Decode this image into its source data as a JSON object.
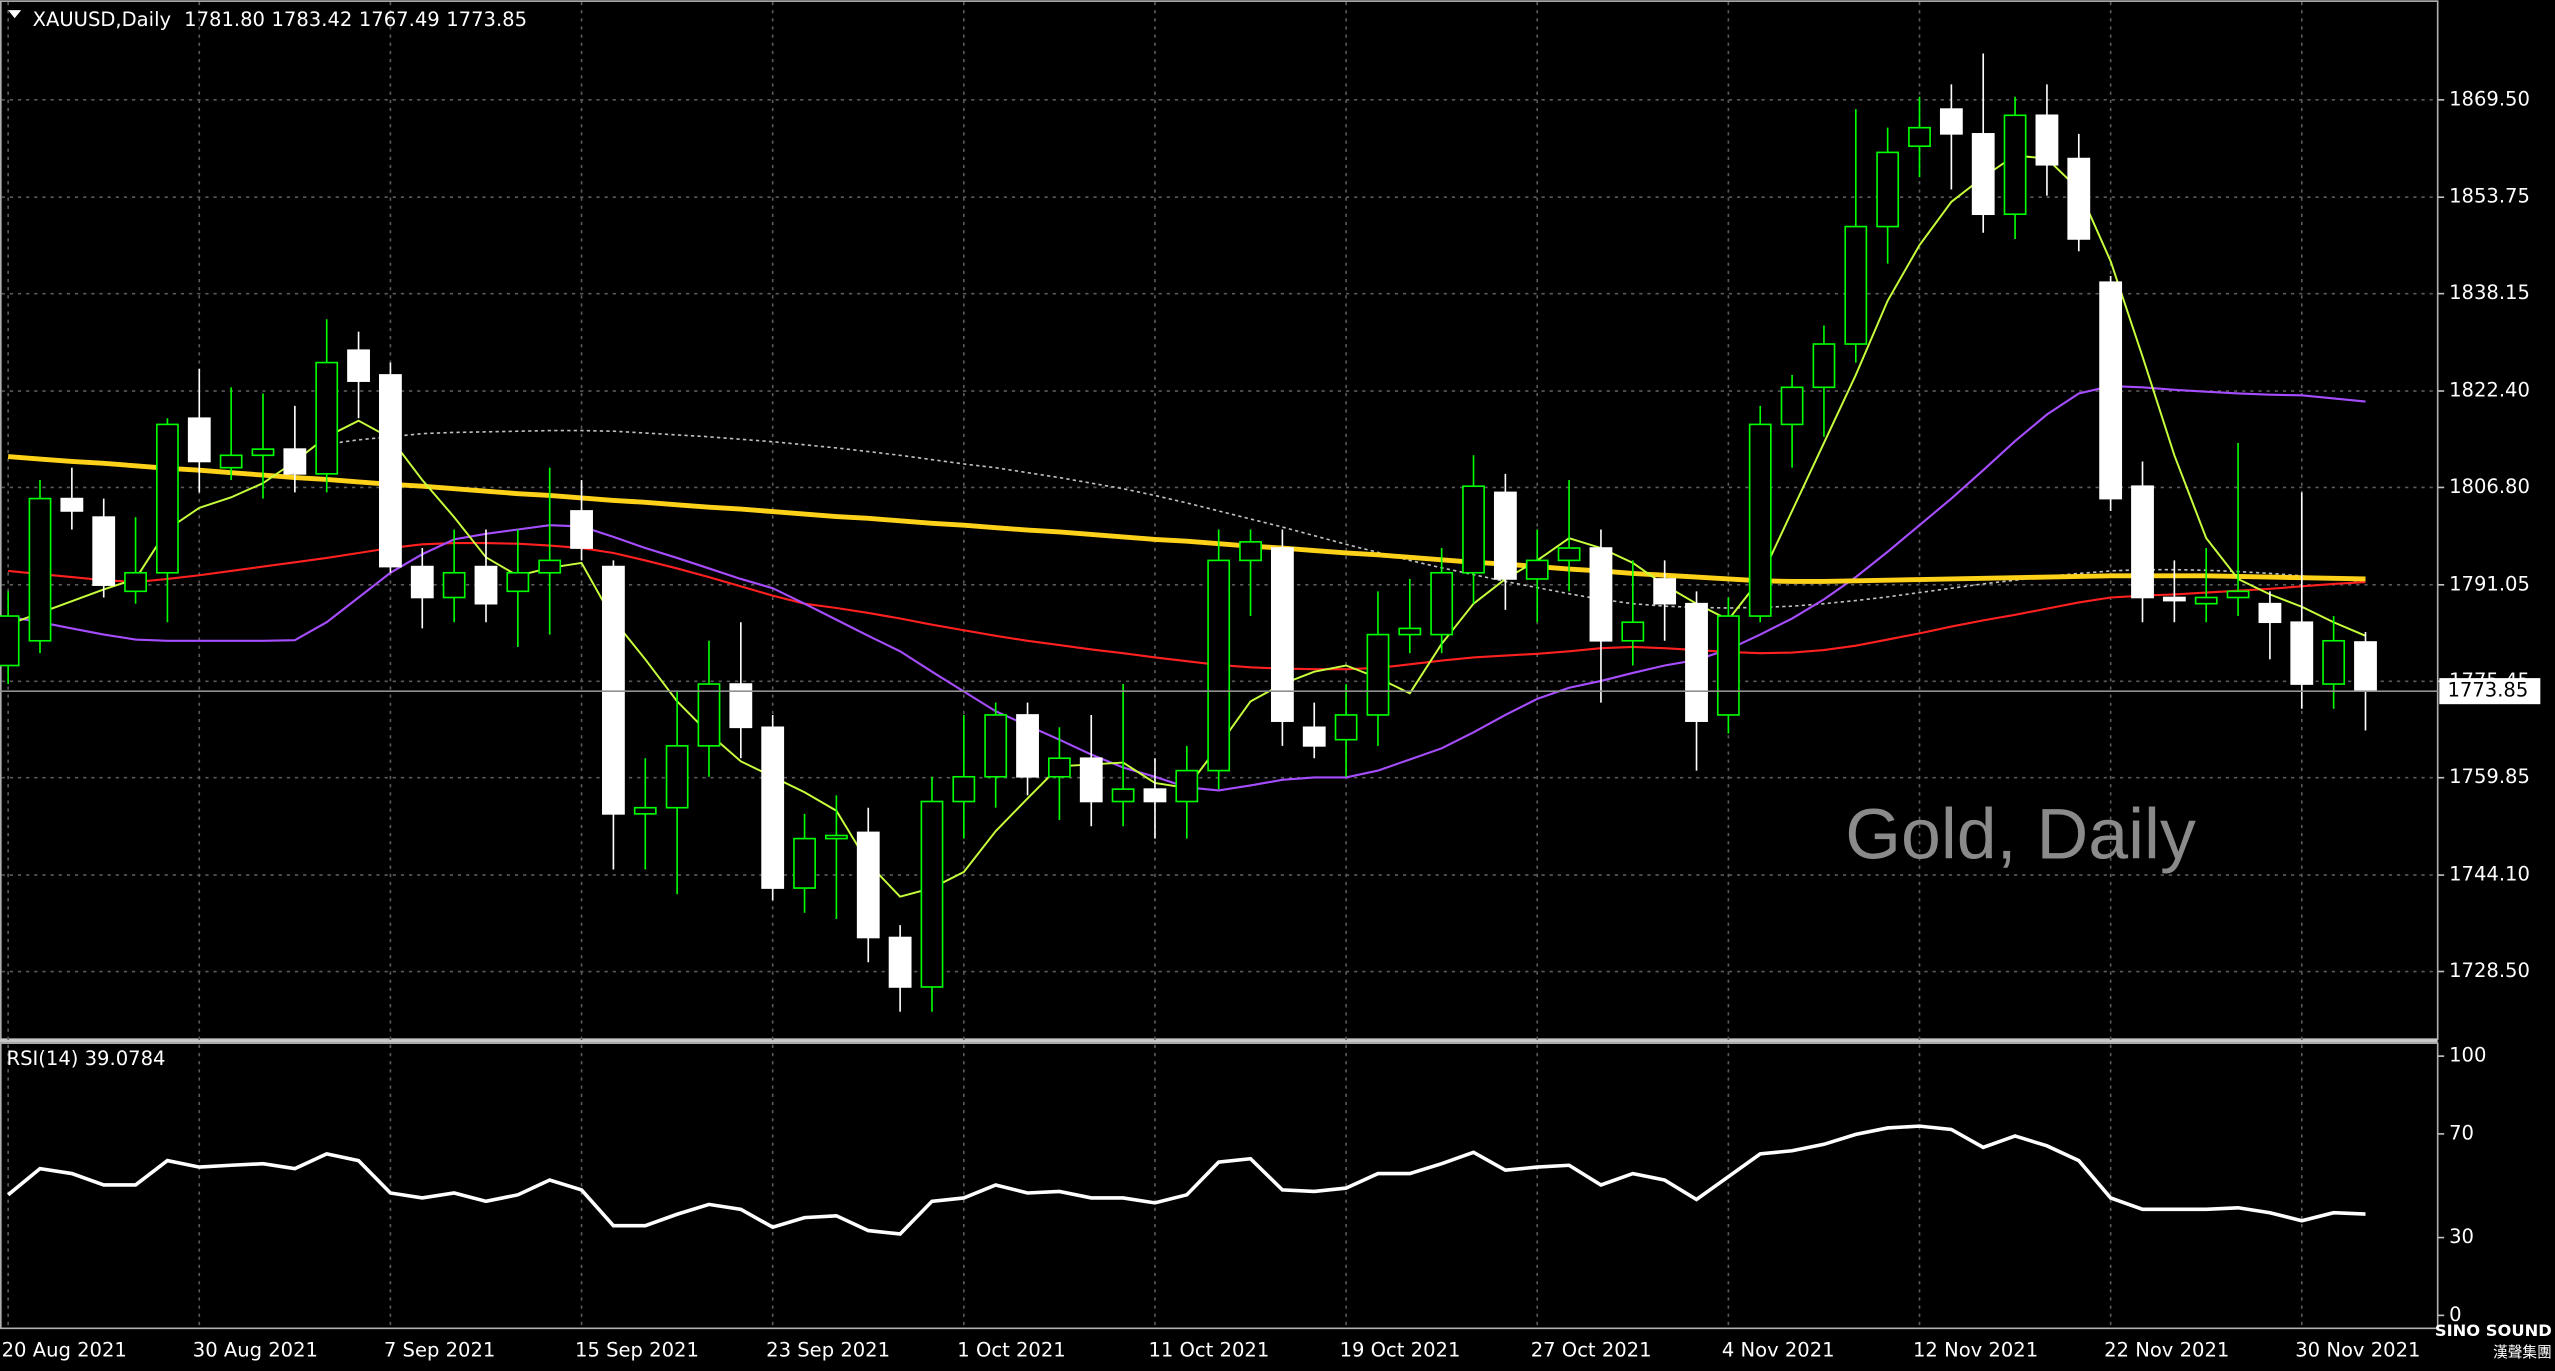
{
  "header": {
    "symbol": "XAUUSD,Daily",
    "ohlc_text": [
      "1781.80",
      "1783.42",
      "1767.49",
      "1773.85"
    ]
  },
  "logo": {
    "line1": "SINO SOUND",
    "line2": "漢聲集團"
  },
  "chart_data": [
    {
      "type": "candlestick",
      "watermark": "Gold, Daily",
      "categories": [
        "20 Aug 2021",
        null,
        null,
        null,
        null,
        null,
        "30 Aug 2021",
        null,
        null,
        null,
        null,
        null,
        "7 Sep 2021",
        null,
        null,
        null,
        null,
        null,
        "15 Sep 2021",
        null,
        null,
        null,
        null,
        null,
        "23 Sep 2021",
        null,
        null,
        null,
        null,
        null,
        "1 Oct 2021",
        null,
        null,
        null,
        null,
        null,
        "11 Oct 2021",
        null,
        null,
        null,
        null,
        null,
        "19 Oct 2021",
        null,
        null,
        null,
        null,
        null,
        "27 Oct 2021",
        null,
        null,
        null,
        null,
        null,
        "4 Nov 2021",
        null,
        null,
        null,
        null,
        null,
        "12 Nov 2021",
        null,
        null,
        null,
        null,
        null,
        "22 Nov 2021",
        null,
        null,
        null,
        null,
        null,
        "30 Nov 2021",
        null,
        null
      ],
      "open": [
        1778,
        1782,
        1805,
        1802,
        1790,
        1793,
        1818,
        1810,
        1812,
        1813,
        1809,
        1829,
        1825,
        1794,
        1789,
        1794,
        1790,
        1793,
        1803,
        1794,
        1754,
        1755,
        1765,
        1775,
        1768,
        1742,
        1750,
        1751,
        1734,
        1726,
        1756,
        1760,
        1770,
        1760,
        1763,
        1756,
        1758,
        1756,
        1761,
        1795,
        1797,
        1768,
        1766,
        1770,
        1783,
        1783,
        1793,
        1806,
        1792,
        1795,
        1797,
        1782,
        1792,
        1788,
        1770,
        1786,
        1817,
        1823,
        1830,
        1849,
        1862,
        1868,
        1864,
        1851,
        1867,
        1860,
        1840,
        1807,
        1789,
        1788,
        1789,
        1788,
        1785,
        1775,
        1781.8
      ],
      "high": [
        1790,
        1808,
        1810,
        1805,
        1802,
        1818,
        1826,
        1823,
        1822,
        1820,
        1834,
        1832,
        1827,
        1797,
        1800,
        1800,
        1800,
        1810,
        1808,
        1795,
        1763,
        1774,
        1782,
        1785,
        1770,
        1754,
        1757,
        1755,
        1736,
        1760,
        1770,
        1772,
        1772,
        1768,
        1770,
        1775,
        1763,
        1765,
        1800,
        1800,
        1800,
        1772,
        1775,
        1790,
        1792,
        1797,
        1812,
        1809,
        1800,
        1808,
        1800,
        1795,
        1795,
        1790,
        1789,
        1820,
        1825,
        1833,
        1868,
        1865,
        1870,
        1872,
        1877,
        1870,
        1872,
        1864,
        1841,
        1811,
        1795,
        1797,
        1814,
        1790,
        1806,
        1786,
        1783.42
      ],
      "low": [
        1775,
        1780,
        1800,
        1789,
        1788,
        1785,
        1806,
        1808,
        1805,
        1806,
        1806,
        1818,
        1793,
        1784,
        1785,
        1785,
        1781,
        1783,
        1795,
        1745,
        1745,
        1741,
        1760,
        1763,
        1740,
        1738,
        1737,
        1730,
        1722,
        1722,
        1750,
        1755,
        1757,
        1753,
        1752,
        1752,
        1750,
        1750,
        1758,
        1786,
        1765,
        1763,
        1760,
        1765,
        1780,
        1780,
        1788,
        1787,
        1785,
        1790,
        1772,
        1778,
        1782,
        1761,
        1767,
        1785,
        1810,
        1815,
        1827,
        1843,
        1857,
        1855,
        1848,
        1847,
        1854,
        1845,
        1803,
        1785,
        1785,
        1785,
        1786,
        1779,
        1771,
        1771,
        1767.49
      ],
      "close": [
        1786,
        1805,
        1803,
        1791,
        1793,
        1817,
        1811,
        1812,
        1813,
        1809,
        1827,
        1824,
        1794,
        1789,
        1793,
        1788,
        1793,
        1795,
        1797,
        1754,
        1755,
        1765,
        1775,
        1768,
        1742,
        1750,
        1750.5,
        1734,
        1726,
        1756,
        1760,
        1770,
        1760,
        1763,
        1756,
        1758,
        1756,
        1761,
        1795,
        1798,
        1769,
        1765,
        1770,
        1783,
        1784,
        1793,
        1807,
        1792,
        1795,
        1797,
        1782,
        1785,
        1788,
        1769,
        1786,
        1817,
        1823,
        1830,
        1849,
        1861,
        1865,
        1864,
        1851,
        1867,
        1859,
        1847,
        1805,
        1789,
        1788.5,
        1789,
        1790,
        1785,
        1775,
        1782,
        1773.85
      ],
      "up_color": "#00ff00",
      "down_color": "#ffffff",
      "ylim": [
        1717.7,
        1885.6
      ],
      "yticks": [
        {
          "value": 1728.5,
          "label": "1728.50"
        },
        {
          "value": 1744.1,
          "label": "1744.10"
        },
        1759.85,
        1775.45,
        1791.05,
        {
          "value": 1806.8,
          "label": "1806.80"
        },
        {
          "value": 1822.4,
          "label": "1822.40"
        },
        1838.15,
        1853.75,
        {
          "value": 1869.5,
          "label": "1869.50"
        }
      ],
      "grid": true,
      "lines": [
        {
          "color": "#c0c0c0",
          "width": 1,
          "dash": true,
          "values": [
            null,
            null,
            null,
            null,
            null,
            null,
            null,
            null,
            null,
            null,
            1813.8,
            1814.5,
            1815.0,
            1815.5,
            1815.7,
            1815.8,
            1815.9,
            1816.0,
            1816.0,
            1815.9,
            1815.6,
            1815.3,
            1815.0,
            1814.6,
            1814.2,
            1813.7,
            1813.2,
            1812.6,
            1812.0,
            1811.3,
            1810.6,
            1810.0,
            1809.2,
            1808.4,
            1807.5,
            1806.6,
            1805.5,
            1804.3,
            1803.0,
            1801.7,
            1800.4,
            1799.0,
            1797.6,
            1796.3,
            1795.0,
            1793.8,
            1792.7,
            1791.6,
            1790.6,
            1789.6,
            1788.7,
            1788.0,
            1787.6,
            1787.4,
            1787.3,
            1787.4,
            1787.6,
            1788.0,
            1788.5,
            1789.1,
            1789.8,
            1790.5,
            1791.2,
            1791.8,
            1792.4,
            1792.9,
            1793.3,
            1793.5,
            1793.5,
            1793.4,
            1793.2,
            1792.9,
            1792.5,
            1792.0,
            1791.6
          ]
        },
        {
          "color": "#ff2020",
          "width": 1.3,
          "dash": false,
          "values": [
            1793.3,
            1792.8,
            1792.3,
            1791.8,
            1791.5,
            1792.0,
            1792.6,
            1793.3,
            1794.0,
            1794.7,
            1795.4,
            1796.2,
            1797.0,
            1797.6,
            1797.8,
            1797.8,
            1797.7,
            1797.4,
            1797.0,
            1796.2,
            1795.0,
            1793.7,
            1792.3,
            1790.8,
            1789.3,
            1788.0,
            1787.3,
            1786.5,
            1785.6,
            1784.6,
            1783.7,
            1782.8,
            1782.0,
            1781.3,
            1780.6,
            1780.0,
            1779.3,
            1778.7,
            1778.1,
            1777.7,
            1777.5,
            1777.4,
            1777.4,
            1777.6,
            1778.2,
            1778.8,
            1779.3,
            1779.6,
            1779.9,
            1780.3,
            1780.8,
            1781.0,
            1780.8,
            1780.5,
            1780.2,
            1780.0,
            1780.1,
            1780.5,
            1781.2,
            1782.2,
            1783.2,
            1784.3,
            1785.3,
            1786.2,
            1787.2,
            1788.2,
            1789.0,
            1789.3,
            1789.5,
            1789.8,
            1790.1,
            1790.4,
            1790.8,
            1791.2,
            1791.5
          ]
        },
        {
          "color": "#a64dff",
          "width": 1.3,
          "dash": false,
          "values": [
            1785.9,
            1785.0,
            1784.0,
            1783.0,
            1782.2,
            1782.0,
            1782.0,
            1782.0,
            1782.0,
            1782.1,
            1785.0,
            1789.0,
            1793.0,
            1796.0,
            1798.4,
            1799.3,
            1800.0,
            1800.7,
            1800.5,
            1798.8,
            1797.0,
            1795.4,
            1793.7,
            1792.0,
            1790.5,
            1788.0,
            1785.4,
            1782.8,
            1780.3,
            1777.0,
            1773.8,
            1770.6,
            1768.3,
            1766.0,
            1763.6,
            1761.5,
            1760.0,
            1758.3,
            1757.8,
            1758.6,
            1759.5,
            1759.9,
            1759.9,
            1761.0,
            1762.8,
            1764.6,
            1767.2,
            1770.0,
            1772.6,
            1774.4,
            1775.5,
            1776.8,
            1778.0,
            1778.9,
            1780.6,
            1783.0,
            1785.6,
            1788.7,
            1792.3,
            1796.4,
            1800.7,
            1805.0,
            1809.6,
            1814.3,
            1818.6,
            1822.0,
            1823.2,
            1823.0,
            1822.6,
            1822.3,
            1822.0,
            1821.8,
            1821.7,
            1821.2,
            1820.7
          ]
        },
        {
          "color": "#ffd21a",
          "width": 3,
          "dash": false,
          "values": [
            1811.8,
            1811.4,
            1811.0,
            1810.7,
            1810.3,
            1809.9,
            1809.6,
            1809.2,
            1808.8,
            1808.4,
            1808.1,
            1807.7,
            1807.3,
            1807.0,
            1806.6,
            1806.2,
            1805.8,
            1805.5,
            1805.1,
            1804.7,
            1804.4,
            1804.0,
            1803.6,
            1803.3,
            1802.9,
            1802.5,
            1802.1,
            1801.8,
            1801.4,
            1801.0,
            1800.7,
            1800.3,
            1799.9,
            1799.6,
            1799.2,
            1798.8,
            1798.4,
            1798.1,
            1797.7,
            1797.3,
            1797.0,
            1796.6,
            1796.2,
            1795.9,
            1795.5,
            1795.1,
            1794.7,
            1794.4,
            1794.0,
            1793.6,
            1793.3,
            1792.9,
            1792.6,
            1792.3,
            1792.0,
            1791.7,
            1791.6,
            1791.6,
            1791.7,
            1791.8,
            1791.9,
            1792.0,
            1792.1,
            1792.2,
            1792.3,
            1792.4,
            1792.5,
            1792.5,
            1792.5,
            1792.5,
            1792.4,
            1792.3,
            1792.2,
            1792.1,
            1792.0
          ]
        },
        {
          "color": "#c8ff3c",
          "width": 1.2,
          "dash": false,
          "values": [
            1784.6,
            1786.5,
            1788.4,
            1790.3,
            1792.0,
            1800.0,
            1803.5,
            1805.2,
            1807.5,
            1811.0,
            1815.0,
            1817.6,
            1814.8,
            1808.0,
            1802.0,
            1795.5,
            1792.5,
            1793.8,
            1794.6,
            1785.4,
            1779.0,
            1772.2,
            1767.0,
            1762.5,
            1760.0,
            1757.5,
            1754.5,
            1746.0,
            1740.6,
            1742.0,
            1744.6,
            1751.2,
            1756.5,
            1761.7,
            1762.0,
            1762.3,
            1759.0,
            1758.2,
            1765.0,
            1772.2,
            1775.0,
            1777.0,
            1778.0,
            1776.0,
            1773.5,
            1781.5,
            1788.0,
            1792.0,
            1795.0,
            1798.6,
            1797.0,
            1794.6,
            1791.0,
            1788.0,
            1785.4,
            1792.0,
            1803.0,
            1814.0,
            1825.0,
            1837.0,
            1846.0,
            1853.0,
            1857.0,
            1860.5,
            1860.0,
            1855.0,
            1843.4,
            1828.0,
            1812.0,
            1798.6,
            1792.0,
            1789.5,
            1787.5,
            1785.0,
            1782.8
          ]
        }
      ]
    },
    {
      "type": "line",
      "title": "RSI(14) 39.0784",
      "color": "#ffffff",
      "values": [
        46.5,
        56.6,
        54.7,
        50.3,
        50.3,
        59.7,
        57.2,
        57.9,
        58.5,
        56.6,
        62.3,
        59.7,
        47.2,
        45.3,
        47.2,
        44,
        46.5,
        52.2,
        48.4,
        34.6,
        34.6,
        39,
        42.8,
        40.9,
        34,
        37.7,
        38.4,
        32.7,
        31.4,
        44,
        45.3,
        50.3,
        47.2,
        47.8,
        45.3,
        45.3,
        43.4,
        46.5,
        59.1,
        60.4,
        48.4,
        47.8,
        49.1,
        54.7,
        54.7,
        58.5,
        62.9,
        56,
        57.2,
        57.9,
        50.3,
        54.7,
        52.2,
        44.7,
        53.5,
        62.3,
        63.5,
        66,
        69.8,
        72.3,
        73,
        71.7,
        64.8,
        69.2,
        65.4,
        59.7,
        45.3,
        40.9,
        40.9,
        40.9,
        41.5,
        39.6,
        36.5,
        39.6,
        39.0784
      ],
      "ylim": [
        -5,
        105
      ],
      "yticks": [
        0,
        30,
        70,
        100
      ]
    }
  ]
}
